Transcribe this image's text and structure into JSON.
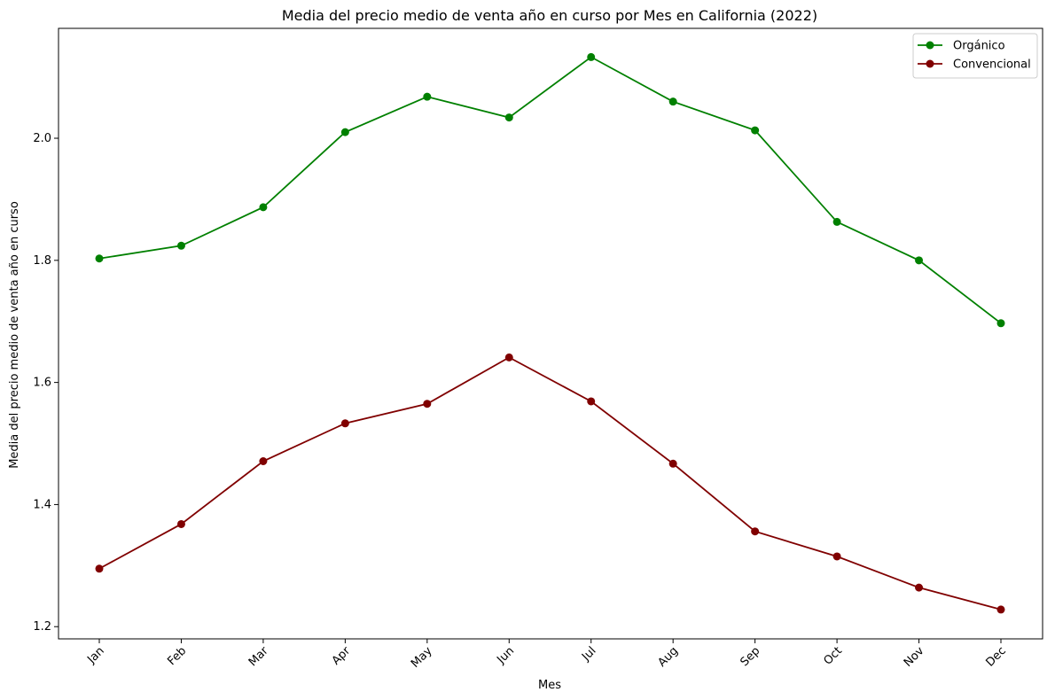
{
  "chart_data": {
    "type": "line",
    "title": "Media del precio medio de venta año en curso por Mes en California (2022)",
    "xlabel": "Mes",
    "ylabel": "Media del precio medio de venta año en curso",
    "categories": [
      "Jan",
      "Feb",
      "Mar",
      "Apr",
      "May",
      "Jun",
      "Jul",
      "Aug",
      "Sep",
      "Oct",
      "Nov",
      "Dec"
    ],
    "ylim": [
      1.18,
      2.18
    ],
    "yticks": [
      1.2,
      1.4,
      1.6,
      1.8,
      2.0
    ],
    "ytick_labels": [
      "1.2",
      "1.4",
      "1.6",
      "1.8",
      "2.0"
    ],
    "grid": false,
    "legend_position": "top-right",
    "series": [
      {
        "name": "Orgánico",
        "color": "#008000",
        "values": [
          1.803,
          1.824,
          1.887,
          2.01,
          2.068,
          2.034,
          2.133,
          2.06,
          2.013,
          1.863,
          1.8,
          1.697
        ]
      },
      {
        "name": "Convencional",
        "color": "#800000",
        "values": [
          1.295,
          1.368,
          1.471,
          1.533,
          1.565,
          1.641,
          1.569,
          1.467,
          1.356,
          1.315,
          1.264,
          1.228
        ]
      }
    ]
  }
}
